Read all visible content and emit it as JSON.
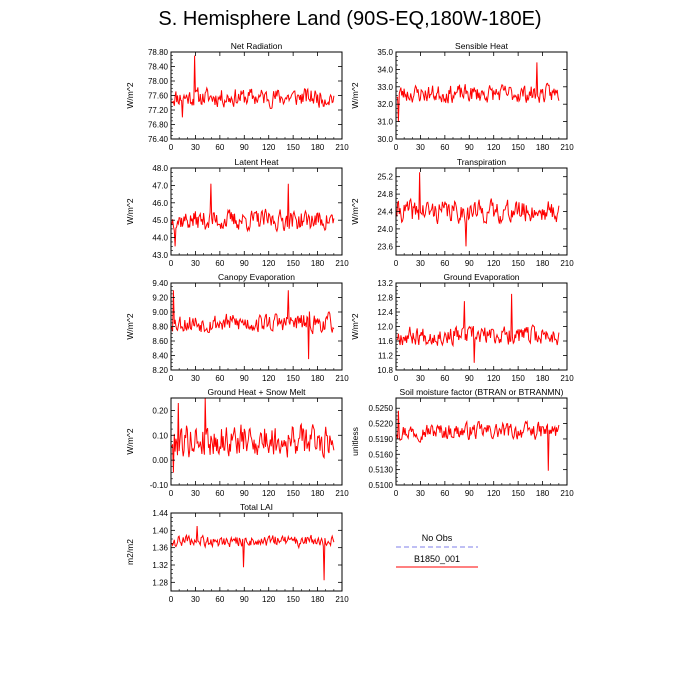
{
  "figure": {
    "title": "S. Hemisphere Land (90S-EQ,180W-180E)",
    "legend": {
      "entries": [
        {
          "label": "No Obs",
          "color": "#9999ee",
          "dash": true
        },
        {
          "label": "B1850_001",
          "color": "#ff0000",
          "dash": false
        }
      ]
    }
  },
  "chart_data": [
    {
      "type": "line",
      "title": "Net Radiation",
      "ylabel": "W/m^2",
      "xlabel": "",
      "xlim": [
        0,
        210
      ],
      "ylim": [
        76.4,
        78.8
      ],
      "grid": false,
      "xticks": [
        "0",
        "30",
        "60",
        "90",
        "120",
        "150",
        "180",
        "210"
      ],
      "yticks": [
        "76.40",
        "76.80",
        "77.20",
        "77.60",
        "78.00",
        "78.40",
        "78.80"
      ],
      "series": [
        {
          "name": "B1850_001",
          "mean": 77.55,
          "amp": 0.35,
          "n": 200,
          "seed": 11,
          "spikes": [
            [
              28,
              78.7
            ],
            [
              13,
              77.0
            ]
          ]
        }
      ]
    },
    {
      "type": "line",
      "title": "Sensible Heat",
      "ylabel": "W/m^2",
      "xlabel": "",
      "xlim": [
        0,
        210
      ],
      "ylim": [
        30.0,
        35.0
      ],
      "grid": false,
      "xticks": [
        "0",
        "30",
        "60",
        "90",
        "120",
        "150",
        "180",
        "210"
      ],
      "yticks": [
        "30.0",
        "31.0",
        "32.0",
        "33.0",
        "34.0",
        "35.0"
      ],
      "series": [
        {
          "name": "B1850_001",
          "mean": 32.6,
          "amp": 0.7,
          "n": 200,
          "seed": 23,
          "spikes": [
            [
              2,
              31.0
            ],
            [
              172,
              34.4
            ]
          ]
        }
      ]
    },
    {
      "type": "line",
      "title": "Latent Heat",
      "ylabel": "W/m^2",
      "xlabel": "",
      "xlim": [
        0,
        210
      ],
      "ylim": [
        43.0,
        48.0
      ],
      "grid": false,
      "xticks": [
        "0",
        "30",
        "60",
        "90",
        "120",
        "150",
        "180",
        "210"
      ],
      "yticks": [
        "43.0",
        "44.0",
        "45.0",
        "46.0",
        "47.0",
        "48.0"
      ],
      "series": [
        {
          "name": "B1850_001",
          "mean": 45.0,
          "amp": 0.8,
          "n": 200,
          "seed": 37,
          "spikes": [
            [
              48,
              47.1
            ],
            [
              143,
              47.1
            ],
            [
              4,
              43.5
            ]
          ]
        }
      ]
    },
    {
      "type": "line",
      "title": "Transpiration",
      "ylabel": "W/m^2",
      "xlabel": "",
      "xlim": [
        0,
        210
      ],
      "ylim": [
        23.4,
        25.4
      ],
      "grid": false,
      "xticks": [
        "0",
        "30",
        "60",
        "90",
        "120",
        "150",
        "180",
        "210"
      ],
      "yticks": [
        "23.6",
        "24.0",
        "24.4",
        "24.8",
        "25.2"
      ],
      "series": [
        {
          "name": "B1850_001",
          "mean": 24.4,
          "amp": 0.35,
          "n": 200,
          "seed": 41,
          "spikes": [
            [
              28,
              25.3
            ],
            [
              85,
              23.6
            ]
          ]
        }
      ]
    },
    {
      "type": "line",
      "title": "Canopy Evaporation",
      "ylabel": "W/m^2",
      "xlabel": "",
      "xlim": [
        0,
        210
      ],
      "ylim": [
        8.2,
        9.4
      ],
      "grid": false,
      "xticks": [
        "0",
        "30",
        "60",
        "90",
        "120",
        "150",
        "180",
        "210"
      ],
      "yticks": [
        "8.20",
        "8.40",
        "8.60",
        "8.80",
        "9.00",
        "9.20",
        "9.40"
      ],
      "series": [
        {
          "name": "B1850_001",
          "mean": 8.85,
          "amp": 0.18,
          "n": 200,
          "seed": 53,
          "spikes": [
            [
              2,
              9.3
            ],
            [
              143,
              9.3
            ],
            [
              168,
              8.35
            ]
          ]
        }
      ]
    },
    {
      "type": "line",
      "title": "Ground Evaporation",
      "ylabel": "W/m^2",
      "xlabel": "",
      "xlim": [
        0,
        210
      ],
      "ylim": [
        10.8,
        13.2
      ],
      "grid": false,
      "xticks": [
        "0",
        "30",
        "60",
        "90",
        "120",
        "150",
        "180",
        "210"
      ],
      "yticks": [
        "10.8",
        "11.2",
        "11.6",
        "12.0",
        "12.4",
        "12.8",
        "13.2"
      ],
      "series": [
        {
          "name": "B1850_001",
          "mean": 11.75,
          "amp": 0.35,
          "n": 200,
          "seed": 67,
          "spikes": [
            [
              141,
              12.9
            ],
            [
              83,
              12.7
            ],
            [
              95,
              11.0
            ]
          ]
        }
      ]
    },
    {
      "type": "line",
      "title": "Ground Heat + Snow Melt",
      "ylabel": "W/m^2",
      "xlabel": "",
      "xlim": [
        0,
        210
      ],
      "ylim": [
        -0.1,
        0.25
      ],
      "grid": false,
      "xticks": [
        "0",
        "30",
        "60",
        "90",
        "120",
        "150",
        "180",
        "210"
      ],
      "yticks": [
        "-0.10",
        "0.00",
        "0.10",
        "0.20"
      ],
      "series": [
        {
          "name": "B1850_001",
          "mean": 0.08,
          "amp": 0.09,
          "n": 200,
          "seed": 79,
          "spikes": [
            [
              41,
              0.25
            ],
            [
              8,
              0.23
            ],
            [
              2,
              -0.05
            ]
          ]
        }
      ]
    },
    {
      "type": "line",
      "title": "Soil moisture factor (BTRAN or BTRANMN)",
      "ylabel": "unitless",
      "xlabel": "",
      "xlim": [
        0,
        210
      ],
      "ylim": [
        0.51,
        0.527
      ],
      "grid": false,
      "xticks": [
        "0",
        "30",
        "60",
        "90",
        "120",
        "150",
        "180",
        "210"
      ],
      "yticks": [
        "0.5100",
        "0.5130",
        "0.5160",
        "0.5190",
        "0.5220",
        "0.5250"
      ],
      "series": [
        {
          "name": "B1850_001",
          "mean": 0.5205,
          "amp": 0.0022,
          "n": 200,
          "seed": 97,
          "spikes": [
            [
              2,
              0.5245
            ],
            [
              186,
              0.5128
            ]
          ]
        }
      ]
    },
    {
      "type": "line",
      "title": "Total LAI",
      "ylabel": "m2/m2",
      "xlabel": "",
      "xlim": [
        0,
        210
      ],
      "ylim": [
        1.26,
        1.44
      ],
      "grid": false,
      "xticks": [
        "0",
        "30",
        "60",
        "90",
        "120",
        "150",
        "180",
        "210"
      ],
      "yticks": [
        "1.28",
        "1.32",
        "1.36",
        "1.40",
        "1.44"
      ],
      "series": [
        {
          "name": "B1850_001",
          "mean": 1.375,
          "amp": 0.018,
          "n": 200,
          "seed": 109,
          "spikes": [
            [
              187,
              1.285
            ],
            [
              88,
              1.315
            ],
            [
              31,
              1.41
            ]
          ]
        }
      ]
    }
  ]
}
